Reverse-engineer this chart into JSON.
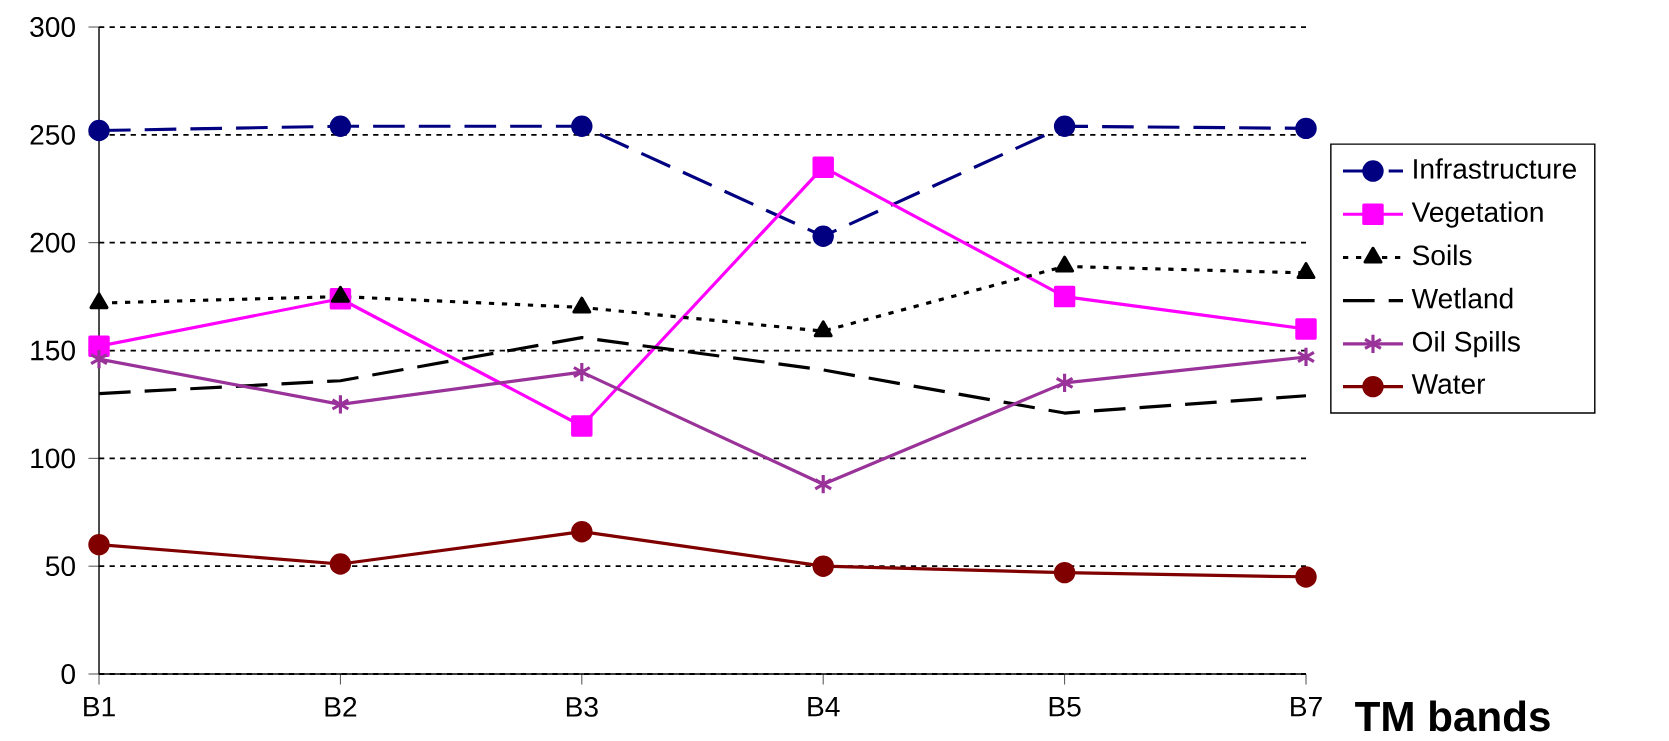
{
  "chart_data": {
    "type": "line",
    "xlabel": "TM bands",
    "categories": [
      "B1",
      "B2",
      "B3",
      "B4",
      "B5",
      "B7"
    ],
    "ylim": [
      0,
      300
    ],
    "yticks": [
      0,
      50,
      100,
      150,
      200,
      250,
      300
    ],
    "grid": "y",
    "legend": "right",
    "series": [
      {
        "name": "Infrastructure",
        "color": "#000080",
        "marker": "circle",
        "line_style": "dashed",
        "values": [
          252,
          254,
          254,
          203,
          254,
          253
        ]
      },
      {
        "name": "Vegetation",
        "color": "#ff00ff",
        "marker": "square",
        "line_style": "solid",
        "values": [
          152,
          174,
          115,
          235,
          175,
          160
        ]
      },
      {
        "name": "Soils",
        "color": "#000000",
        "marker": "triangle",
        "line_style": "dotted",
        "values": [
          172,
          175,
          170,
          159,
          189,
          186
        ]
      },
      {
        "name": "Wetland",
        "color": "#000000",
        "marker": "none",
        "line_style": "dashed",
        "values": [
          130,
          136,
          156,
          141,
          121,
          129
        ]
      },
      {
        "name": "Oil Spills",
        "color": "#993399",
        "marker": "cross",
        "line_style": "solid",
        "values": [
          146,
          125,
          140,
          88,
          135,
          147
        ]
      },
      {
        "name": "Water",
        "color": "#800000",
        "marker": "circle",
        "line_style": "solid",
        "values": [
          60,
          51,
          66,
          50,
          47,
          45
        ]
      }
    ]
  }
}
